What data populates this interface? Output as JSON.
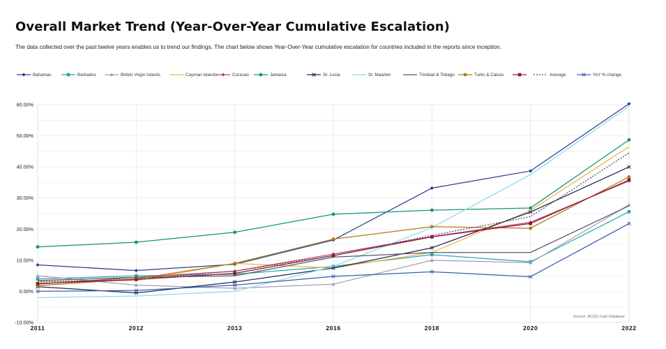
{
  "page": {
    "title": "Overall Market Trend (Year-Over-Year Cumulative Escalation)",
    "subtitle": "The data collected over the past twelve years enables us to trend our findings. The chart below shows Year-Over-Year cumulative escalation for countries included in the reports since inception."
  },
  "chart_data": {
    "type": "line",
    "x": [
      "2011",
      "2012",
      "2013",
      "2016",
      "2018",
      "2020",
      "2022"
    ],
    "ylim": [
      -10,
      60
    ],
    "yticks": [
      "-10.00%",
      "0.00%",
      "10.00%",
      "20.00%",
      "30.00%",
      "40.00%",
      "50.00%",
      "60.00%"
    ],
    "ytick_values": [
      -10,
      0,
      10,
      20,
      30,
      40,
      50,
      60
    ],
    "grid": true,
    "legend_position": "top",
    "source": "Source: BCQS Cost Database",
    "series": [
      {
        "name": "Bahamas",
        "color": "#2a3f8f",
        "marker": "diamond",
        "dash": "",
        "values": [
          8.5,
          6.7,
          8.7,
          16.5,
          33.2,
          38.7,
          60.3
        ]
      },
      {
        "name": "Barbados",
        "color": "#2aa6b0",
        "marker": "square",
        "dash": "",
        "values": [
          4.0,
          5.0,
          5.5,
          8.0,
          11.8,
          9.5,
          25.6
        ]
      },
      {
        "name": "British Virgin Islands",
        "color": "#a0a0b4",
        "marker": "triangle",
        "dash": "",
        "values": [
          5.0,
          2.0,
          1.0,
          2.3,
          10.0,
          9.2,
          27.8
        ]
      },
      {
        "name": "Cayman Islands",
        "color": "#f3b243",
        "marker": "none",
        "dash": "",
        "values": [
          3.2,
          3.5,
          9.0,
          7.5,
          12.5,
          26.0,
          46.5
        ]
      },
      {
        "name": "Curacao",
        "color": "#c23a6a",
        "marker": "diamond",
        "dash": "",
        "values": [
          2.3,
          4.5,
          6.5,
          12.0,
          17.6,
          22.2,
          35.5
        ]
      },
      {
        "name": "Jamaica",
        "color": "#12937a",
        "marker": "circle",
        "dash": "",
        "values": [
          14.3,
          15.8,
          19.0,
          24.8,
          26.1,
          26.8,
          48.7
        ]
      },
      {
        "name": "St. Lucia",
        "color": "#1c2550",
        "marker": "cross",
        "dash": "",
        "values": [
          1.5,
          -0.5,
          3.0,
          7.5,
          14.0,
          25.5,
          40.0
        ]
      },
      {
        "name": "St. Maarten",
        "color": "#8fd8ec",
        "marker": "none",
        "dash": "",
        "values": [
          -2.0,
          -1.5,
          0.0,
          8.0,
          20.5,
          37.5,
          59.5
        ]
      },
      {
        "name": "Trinidad & Tobago",
        "color": "#555566",
        "marker": "none",
        "dash": "",
        "values": [
          3.5,
          4.5,
          5.0,
          11.0,
          12.5,
          12.5,
          27.5
        ]
      },
      {
        "name": "Turks & Caicos",
        "color": "#b07a12",
        "marker": "circle",
        "dash": "",
        "values": [
          1.8,
          4.0,
          9.0,
          16.8,
          20.8,
          20.3,
          36.8
        ]
      },
      {
        "name": "",
        "color": "#8a1a3a",
        "marker": "square",
        "dash": "",
        "values": [
          2.5,
          3.8,
          5.8,
          11.5,
          17.5,
          21.8,
          35.8
        ]
      },
      {
        "name": "Average",
        "color": "#444455",
        "marker": "none",
        "dash": "2,2",
        "values": [
          3.0,
          3.9,
          6.5,
          11.5,
          18.0,
          24.0,
          44.5
        ]
      },
      {
        "name": "YoY % change",
        "color": "#3a5db0",
        "marker": "cross",
        "dash": "",
        "values": [
          0.0,
          0.3,
          2.0,
          4.8,
          6.3,
          4.7,
          21.8
        ]
      }
    ]
  }
}
